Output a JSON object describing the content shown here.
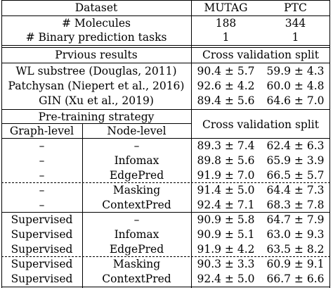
{
  "header": {
    "dataset": "Dataset",
    "mutag": "MUTAG",
    "ptc": "PTC",
    "molecules_label": "# Molecules",
    "molecules_mutag": "188",
    "molecules_ptc": "344",
    "tasks_label": "# Binary prediction tasks",
    "tasks_mutag": "1",
    "tasks_ptc": "1"
  },
  "previous": {
    "title": "Prvious results",
    "cv_title": "Cross validation split",
    "rows": [
      {
        "method": "WL substree (Douglas, 2011)",
        "mutag": "90.4 ± 5.7",
        "ptc": "59.9 ± 4.3"
      },
      {
        "method": "Patchysan (Niepert et al., 2016)",
        "mutag": "92.6 ± 4.2",
        "ptc": "60.0 ± 4.8"
      },
      {
        "method": "GIN (Xu et al., 2019)",
        "mutag": "89.4 ± 5.6",
        "ptc": "64.6 ± 7.0"
      }
    ]
  },
  "pretraining": {
    "title": "Pre-training strategy",
    "graph_level": "Graph-level",
    "node_level": "Node-level",
    "cv_title": "Cross validation split",
    "rows": [
      {
        "graph": "–",
        "node": "–",
        "mutag": "89.3 ± 7.4",
        "ptc": "62.4 ± 6.3"
      },
      {
        "graph": "–",
        "node": "Infomax",
        "mutag": "89.8 ± 5.6",
        "ptc": "65.9 ± 3.9"
      },
      {
        "graph": "–",
        "node": "EdgePred",
        "mutag": "91.9 ± 7.0",
        "ptc": "66.5 ± 5.7"
      },
      {
        "graph": "–",
        "node": "Masking",
        "mutag": "91.4 ± 5.0",
        "ptc": "64.4 ± 7.3"
      },
      {
        "graph": "–",
        "node": "ContextPred",
        "mutag": "92.4 ± 7.1",
        "ptc": "68.3 ± 7.8"
      },
      {
        "graph": "Supervised",
        "node": "–",
        "mutag": "90.9 ± 5.8",
        "ptc": "64.7 ± 7.9"
      },
      {
        "graph": "Supervised",
        "node": "Infomax",
        "mutag": "90.9 ± 5.1",
        "ptc": "63.0 ± 9.3"
      },
      {
        "graph": "Supervised",
        "node": "EdgePred",
        "mutag": "91.9 ± 4.2",
        "ptc": "63.5 ± 8.2"
      },
      {
        "graph": "Supervised",
        "node": "Masking",
        "mutag": "90.3 ± 3.3",
        "ptc": "60.9 ± 9.1"
      },
      {
        "graph": "Supervised",
        "node": "ContextPred",
        "mutag": "92.4 ± 5.0",
        "ptc": "66.7 ± 6.6"
      }
    ]
  }
}
